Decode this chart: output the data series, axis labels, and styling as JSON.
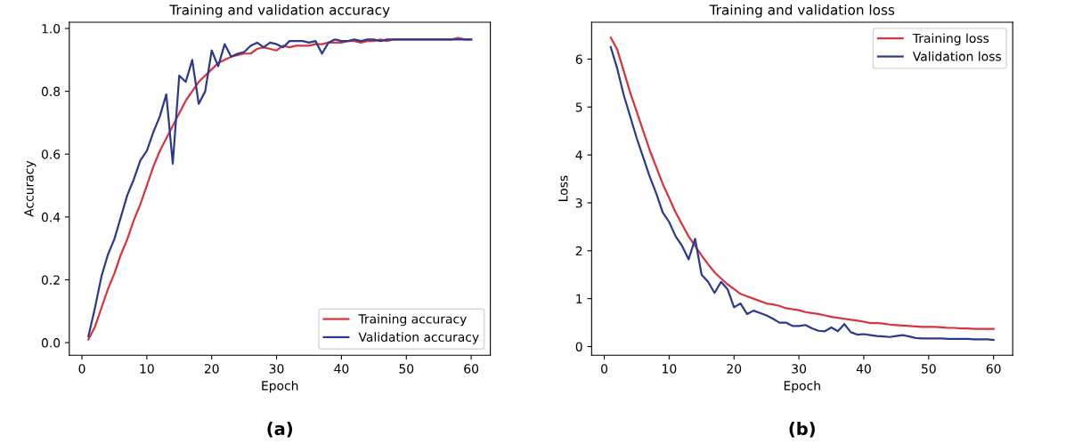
{
  "chart_data": [
    {
      "type": "line",
      "title": "Training and validation accuracy",
      "xlabel": "Epoch",
      "ylabel": "Accuracy",
      "annotations": [
        "(a)"
      ],
      "x": [
        1,
        2,
        3,
        4,
        5,
        6,
        7,
        8,
        9,
        10,
        11,
        12,
        13,
        14,
        15,
        16,
        17,
        18,
        19,
        20,
        21,
        22,
        23,
        24,
        25,
        26,
        27,
        28,
        29,
        30,
        31,
        32,
        33,
        34,
        35,
        36,
        37,
        38,
        39,
        40,
        41,
        42,
        43,
        44,
        45,
        46,
        47,
        48,
        49,
        50,
        51,
        52,
        53,
        54,
        55,
        56,
        57,
        58,
        59,
        60
      ],
      "series": [
        {
          "name": "Training accuracy",
          "color": "#d8333f",
          "values": [
            0.01,
            0.05,
            0.11,
            0.17,
            0.22,
            0.28,
            0.33,
            0.39,
            0.44,
            0.5,
            0.56,
            0.61,
            0.65,
            0.69,
            0.73,
            0.77,
            0.8,
            0.83,
            0.85,
            0.87,
            0.89,
            0.9,
            0.91,
            0.915,
            0.92,
            0.92,
            0.935,
            0.94,
            0.935,
            0.93,
            0.945,
            0.94,
            0.945,
            0.945,
            0.945,
            0.95,
            0.95,
            0.955,
            0.955,
            0.955,
            0.96,
            0.96,
            0.955,
            0.96,
            0.96,
            0.965,
            0.96,
            0.965,
            0.965,
            0.965,
            0.965,
            0.965,
            0.965,
            0.965,
            0.965,
            0.965,
            0.965,
            0.97,
            0.965,
            0.965
          ]
        },
        {
          "name": "Validation accuracy",
          "color": "#2b3a8f",
          "values": [
            0.02,
            0.11,
            0.21,
            0.28,
            0.33,
            0.4,
            0.47,
            0.52,
            0.58,
            0.61,
            0.67,
            0.72,
            0.79,
            0.57,
            0.85,
            0.83,
            0.9,
            0.76,
            0.8,
            0.93,
            0.88,
            0.95,
            0.91,
            0.92,
            0.925,
            0.945,
            0.955,
            0.94,
            0.955,
            0.95,
            0.94,
            0.96,
            0.96,
            0.96,
            0.955,
            0.96,
            0.92,
            0.955,
            0.965,
            0.96,
            0.96,
            0.965,
            0.96,
            0.965,
            0.965,
            0.96,
            0.965,
            0.965,
            0.965,
            0.965,
            0.965,
            0.965,
            0.965,
            0.965,
            0.965,
            0.965,
            0.965,
            0.965,
            0.965,
            0.965
          ]
        }
      ],
      "xlim": [
        -1.95,
        62.95
      ],
      "xticks": [
        0,
        10,
        20,
        30,
        40,
        50,
        60
      ],
      "ylim": [
        -0.04,
        1.02
      ],
      "yticks": [
        {
          "value": 0,
          "label": "0.0"
        },
        {
          "value": 0.2,
          "label": "0.2"
        },
        {
          "value": 0.4,
          "label": "0.4"
        },
        {
          "value": 0.6,
          "label": "0.6"
        },
        {
          "value": 0.8,
          "label": "0.8"
        },
        {
          "value": 1,
          "label": "1.0"
        }
      ],
      "legend": "bottom right",
      "grid": false,
      "marker": "none",
      "line_style": "solid"
    },
    {
      "type": "line",
      "title": "Training and validation loss",
      "xlabel": "Epoch",
      "ylabel": "Loss",
      "annotations": [
        "(b)"
      ],
      "x": [
        1,
        2,
        3,
        4,
        5,
        6,
        7,
        8,
        9,
        10,
        11,
        12,
        13,
        14,
        15,
        16,
        17,
        18,
        19,
        20,
        21,
        22,
        23,
        24,
        25,
        26,
        27,
        28,
        29,
        30,
        31,
        32,
        33,
        34,
        35,
        36,
        37,
        38,
        39,
        40,
        41,
        42,
        43,
        44,
        45,
        46,
        47,
        48,
        49,
        50,
        51,
        52,
        53,
        54,
        55,
        56,
        57,
        58,
        59,
        60
      ],
      "series": [
        {
          "name": "Training loss",
          "color": "#d8333f",
          "values": [
            6.45,
            6.2,
            5.75,
            5.3,
            4.9,
            4.5,
            4.1,
            3.75,
            3.4,
            3.1,
            2.8,
            2.55,
            2.3,
            2.1,
            1.9,
            1.72,
            1.55,
            1.42,
            1.3,
            1.2,
            1.1,
            1.05,
            1.0,
            0.95,
            0.9,
            0.88,
            0.85,
            0.8,
            0.78,
            0.76,
            0.72,
            0.7,
            0.68,
            0.65,
            0.62,
            0.6,
            0.58,
            0.56,
            0.54,
            0.52,
            0.49,
            0.49,
            0.48,
            0.46,
            0.45,
            0.44,
            0.43,
            0.42,
            0.41,
            0.41,
            0.41,
            0.4,
            0.39,
            0.39,
            0.38,
            0.38,
            0.37,
            0.37,
            0.37,
            0.37
          ]
        },
        {
          "name": "Validation loss",
          "color": "#2b3a8f",
          "values": [
            6.25,
            5.8,
            5.25,
            4.8,
            4.35,
            3.95,
            3.55,
            3.2,
            2.8,
            2.6,
            2.3,
            2.1,
            1.82,
            2.25,
            1.5,
            1.35,
            1.12,
            1.35,
            1.2,
            0.82,
            0.9,
            0.68,
            0.75,
            0.7,
            0.65,
            0.58,
            0.5,
            0.5,
            0.43,
            0.43,
            0.45,
            0.38,
            0.33,
            0.32,
            0.4,
            0.32,
            0.47,
            0.3,
            0.25,
            0.26,
            0.24,
            0.22,
            0.21,
            0.2,
            0.22,
            0.24,
            0.21,
            0.18,
            0.17,
            0.17,
            0.17,
            0.17,
            0.16,
            0.16,
            0.16,
            0.16,
            0.15,
            0.15,
            0.15,
            0.14
          ]
        }
      ],
      "xlim": [
        -1.95,
        62.95
      ],
      "xticks": [
        0,
        10,
        20,
        30,
        40,
        50,
        60
      ],
      "ylim": [
        -0.18,
        6.77
      ],
      "yticks": [
        0,
        1,
        2,
        3,
        4,
        5,
        6
      ],
      "legend": "top right",
      "grid": false,
      "marker": "none",
      "line_style": "solid"
    }
  ]
}
